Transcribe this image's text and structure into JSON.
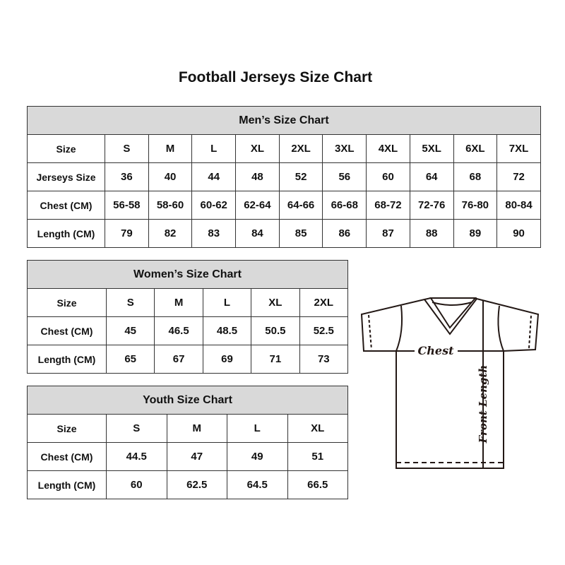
{
  "title": "Football Jerseys Size Chart",
  "men": {
    "caption": "Men’s Size Chart",
    "rows": [
      [
        "Size",
        "S",
        "M",
        "L",
        "XL",
        "2XL",
        "3XL",
        "4XL",
        "5XL",
        "6XL",
        "7XL"
      ],
      [
        "Jerseys Size",
        "36",
        "40",
        "44",
        "48",
        "52",
        "56",
        "60",
        "64",
        "68",
        "72"
      ],
      [
        "Chest (CM)",
        "56-58",
        "58-60",
        "60-62",
        "62-64",
        "64-66",
        "66-68",
        "68-72",
        "72-76",
        "76-80",
        "80-84"
      ],
      [
        "Length (CM)",
        "79",
        "82",
        "83",
        "84",
        "85",
        "86",
        "87",
        "88",
        "89",
        "90"
      ]
    ]
  },
  "women": {
    "caption": "Women’s Size Chart",
    "rows": [
      [
        "Size",
        "S",
        "M",
        "L",
        "XL",
        "2XL"
      ],
      [
        "Chest (CM)",
        "45",
        "46.5",
        "48.5",
        "50.5",
        "52.5"
      ],
      [
        "Length (CM)",
        "65",
        "67",
        "69",
        "71",
        "73"
      ]
    ]
  },
  "youth": {
    "caption": "Youth Size Chart",
    "rows": [
      [
        "Size",
        "S",
        "M",
        "L",
        "XL"
      ],
      [
        "Chest (CM)",
        "44.5",
        "47",
        "49",
        "51"
      ],
      [
        "Length (CM)",
        "60",
        "62.5",
        "64.5",
        "66.5"
      ]
    ]
  },
  "diagram": {
    "chest_label": "Chest",
    "length_label": "Front Length"
  }
}
